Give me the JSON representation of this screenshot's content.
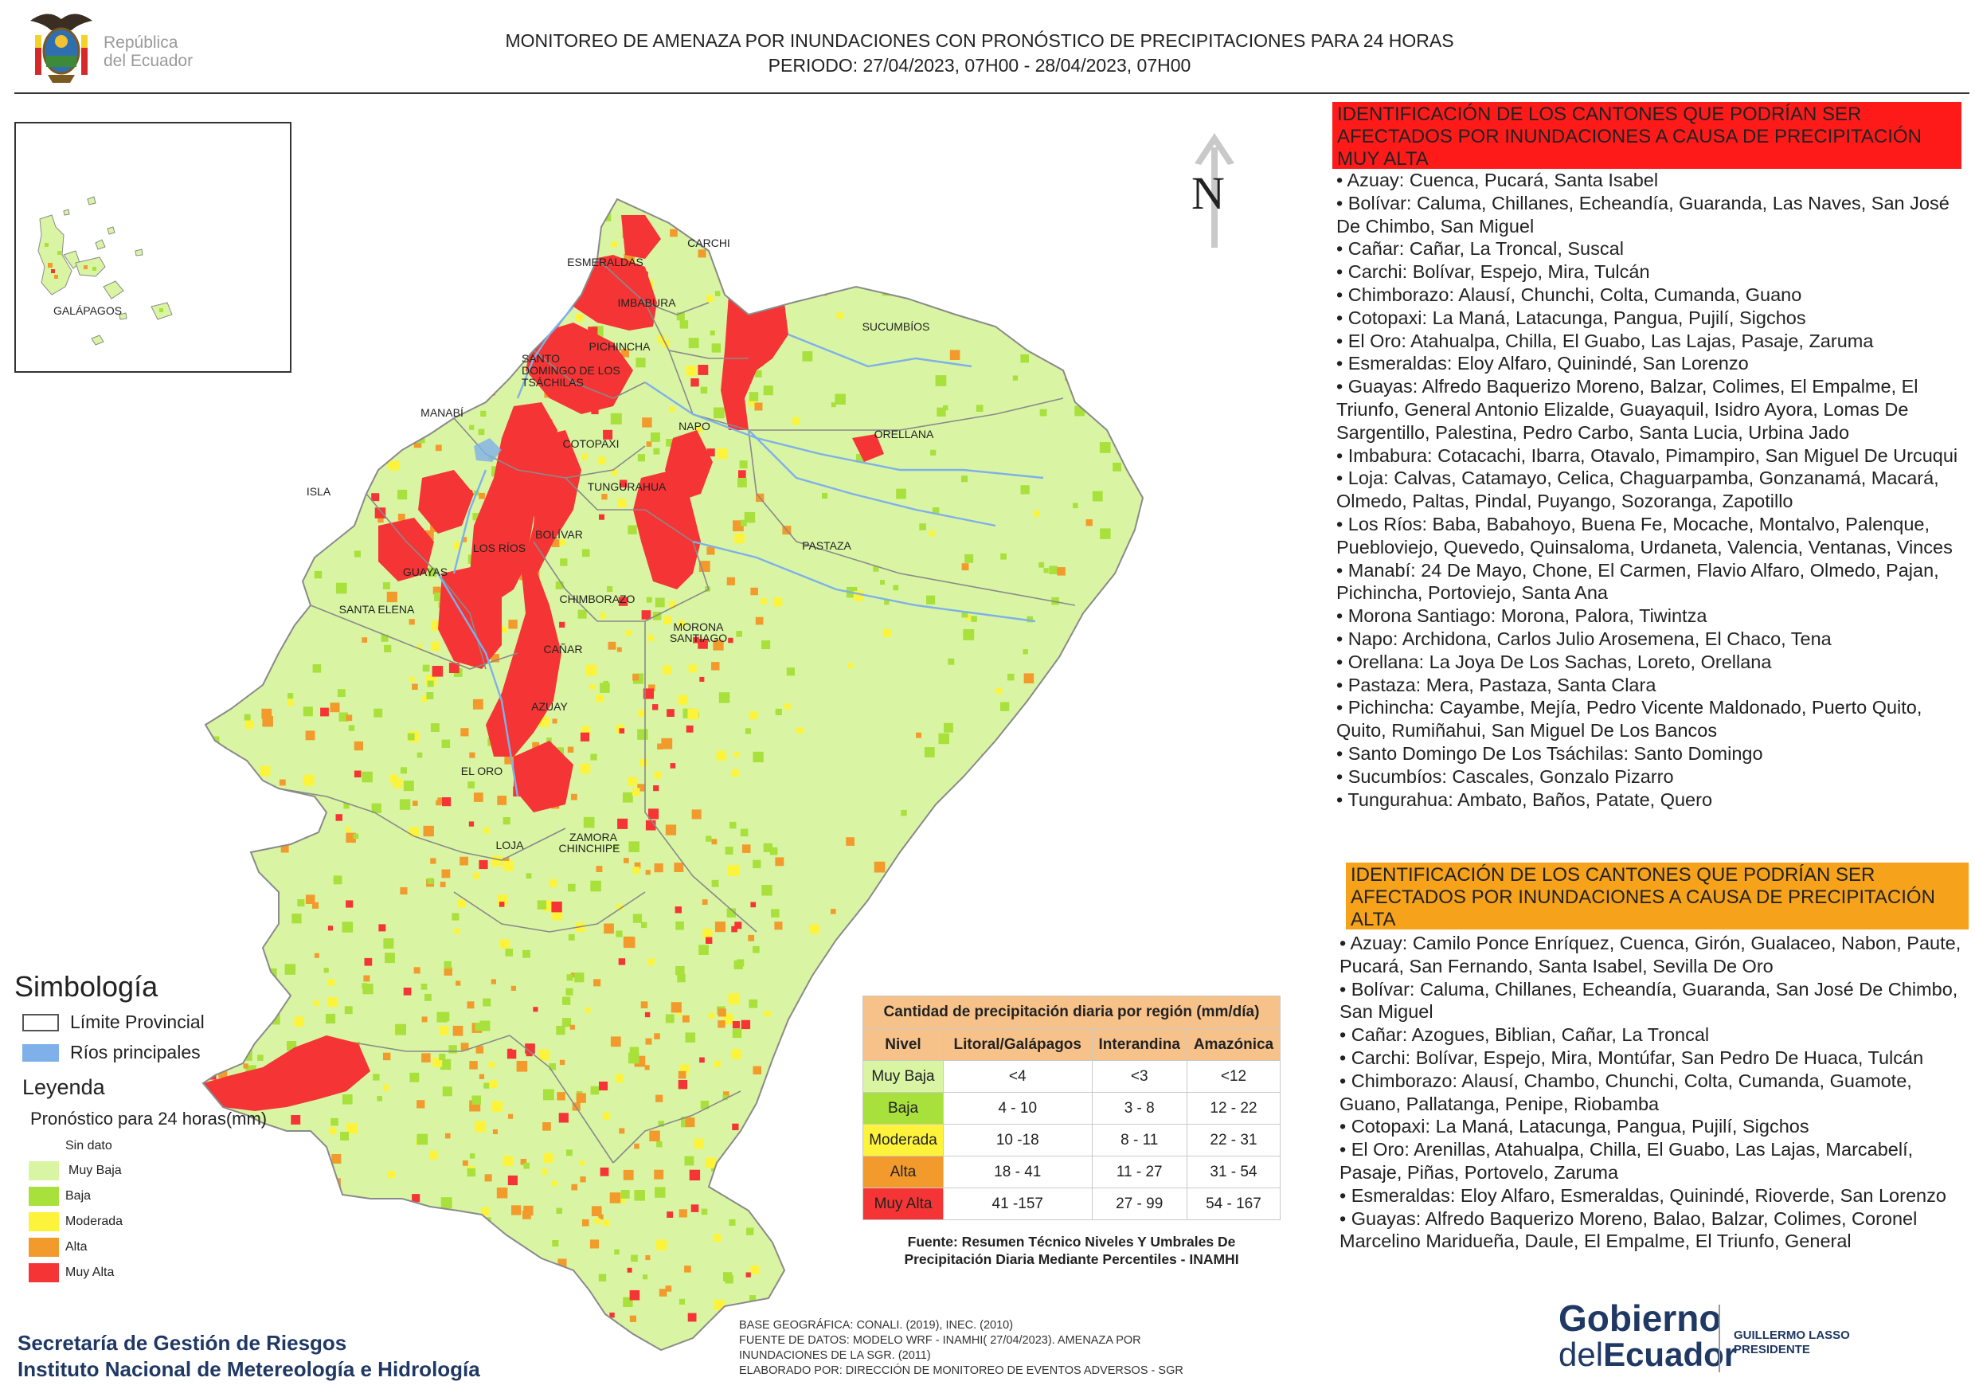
{
  "header": {
    "logo_text_line1": "República",
    "logo_text_line2": "del Ecuador",
    "title_line1": "MONITOREO DE AMENAZA POR INUNDACIONES  CON PRONÓSTICO DE  PRECIPITACIONES PARA 24 HORAS",
    "title_line2": "PERIODO: 27/04/2023, 07H00 - 28/04/2023, 07H00"
  },
  "map": {
    "north_label": "N",
    "inset_label": "GALÁPAGOS",
    "province_labels": [
      "CARCHI",
      "ESMERALDAS",
      "IMBABURA",
      "SUCUMBÍOS",
      "PICHINCHA",
      "SANTO",
      "DOMINGO DE LOS",
      "TSÁCHILAS",
      "MANABÍ",
      "NAPO",
      "ORELLANA",
      "COTOPAXI",
      "ISLA",
      "TUNGURAHUA",
      "BOLÍVAR",
      "LOS RÍOS",
      "PASTAZA",
      "GUAYAS",
      "CHIMBORAZO",
      "SANTA ELENA",
      "MORONA",
      "SANTIAGO",
      "CAÑAR",
      "AZUAY",
      "EL ORO",
      "ZAMORA",
      "CHINCHIPE",
      "LOJA"
    ],
    "colors": {
      "muy_baja": "#d9f5a3",
      "baja": "#a8e03c",
      "moderada": "#fdf33a",
      "alta": "#f39a2c",
      "muy_alta": "#f53535",
      "rivers": "#7fb0ea",
      "boundary": "#8a8a8a"
    }
  },
  "simbologia": {
    "title": "Simbología",
    "limite": "Límite Provincial",
    "rios": "Ríos principales",
    "leyenda": "Leyenda",
    "pronostico": "Pronóstico para 24 horas(mm)",
    "items": [
      "Sin dato",
      "Muy Baja",
      "Baja",
      "Moderada",
      "Alta",
      "Muy Alta"
    ]
  },
  "precip_table": {
    "caption": "Cantidad de precipitación diaria por región (mm/día)",
    "headers": [
      "Nivel",
      "Litoral/Galápagos",
      "Interandina",
      "Amazónica"
    ],
    "rows": [
      {
        "nivel": "Muy Baja",
        "litoral": "<4",
        "interandina": "<3",
        "amazonica": "<12",
        "color": "#d9f5a3"
      },
      {
        "nivel": "Baja",
        "litoral": "4 - 10",
        "interandina": "3 - 8",
        "amazonica": "12 - 22",
        "color": "#a8e03c"
      },
      {
        "nivel": "Moderada",
        "litoral": "10 -18",
        "interandina": "8 - 11",
        "amazonica": "22 - 31",
        "color": "#fdf33a"
      },
      {
        "nivel": "Alta",
        "litoral": "18 - 41",
        "interandina": "11 - 27",
        "amazonica": "31 - 54",
        "color": "#f39a2c"
      },
      {
        "nivel": "Muy Alta",
        "litoral": "41 -157",
        "interandina": "27 - 99",
        "amazonica": "54 - 167",
        "color": "#f53535"
      }
    ],
    "source_line1": "Fuente: Resumen Técnico Niveles Y Umbrales De",
    "source_line2": "Precipitación Diaria Mediante Percentiles - INAMHI"
  },
  "muy_alta": {
    "heading": "IDENTIFICACIÓN DE LOS CANTONES QUE PODRÍAN SER AFECTADOS POR INUNDACIONES  A CAUSA DE PRECIPITACIÓN MUY ALTA",
    "items": [
      "• Azuay: Cuenca, Pucará, Santa Isabel",
      "• Bolívar: Caluma, Chillanes, Echeandía, Guaranda, Las Naves, San José De Chimbo, San Miguel",
      "• Cañar: Cañar, La Troncal, Suscal",
      "• Carchi: Bolívar, Espejo, Mira, Tulcán",
      "• Chimborazo: Alausí, Chunchi, Colta, Cumanda, Guano",
      "• Cotopaxi: La Maná, Latacunga, Pangua, Pujilí, Sigchos",
      "• El Oro: Atahualpa, Chilla, El Guabo, Las Lajas, Pasaje, Zaruma",
      "• Esmeraldas: Eloy Alfaro, Quinindé, San Lorenzo",
      "• Guayas: Alfredo Baquerizo Moreno, Balzar, Colimes, El Empalme, El Triunfo, General Antonio Elizalde, Guayaquil, Isidro Ayora, Lomas De Sargentillo, Palestina, Pedro Carbo, Santa Lucia, Urbina Jado",
      "• Imbabura: Cotacachi, Ibarra, Otavalo, Pimampiro, San Miguel De Urcuqui",
      "• Loja: Calvas, Catamayo, Celica, Chaguarpamba, Gonzanamá, Macará, Olmedo, Paltas, Pindal, Puyango, Sozoranga, Zapotillo",
      "• Los Ríos: Baba, Babahoyo, Buena Fe, Mocache, Montalvo, Palenque, Puebloviejo, Quevedo, Quinsaloma, Urdaneta, Valencia, Ventanas, Vinces",
      "• Manabí: 24 De Mayo, Chone, El Carmen, Flavio Alfaro, Olmedo, Pajan, Pichincha, Portoviejo, Santa Ana",
      "• Morona Santiago: Morona, Palora, Tiwintza",
      "• Napo: Archidona, Carlos Julio Arosemena, El Chaco, Tena",
      "• Orellana: La Joya De Los Sachas, Loreto, Orellana",
      "• Pastaza: Mera, Pastaza, Santa Clara",
      "• Pichincha: Cayambe, Mejía, Pedro Vicente Maldonado, Puerto Quito, Quito, Rumiñahui, San Miguel De Los Bancos",
      "• Santo Domingo De Los Tsáchilas: Santo Domingo",
      "• Sucumbíos: Cascales, Gonzalo Pizarro",
      "• Tungurahua: Ambato, Baños, Patate, Quero"
    ]
  },
  "alta": {
    "heading": "IDENTIFICACIÓN DE LOS CANTONES QUE  PODRÍAN SER AFECTADOS POR INUNDACIONES  A CAUSA DE PRECIPITACIÓN ALTA",
    "items": [
      "• Azuay: Camilo Ponce Enríquez, Cuenca, Girón, Gualaceo, Nabon, Paute, Pucará, San Fernando, Santa Isabel, Sevilla De Oro",
      "• Bolívar: Caluma, Chillanes, Echeandía, Guaranda, San José De Chimbo, San Miguel",
      "• Cañar: Azogues, Biblian, Cañar, La Troncal",
      "• Carchi: Bolívar, Espejo, Mira, Montúfar, San Pedro De Huaca, Tulcán",
      "• Chimborazo: Alausí, Chambo, Chunchi, Colta, Cumanda, Guamote, Guano, Pallatanga, Penipe, Riobamba",
      "• Cotopaxi: La Maná, Latacunga, Pangua, Pujilí, Sigchos",
      "• El Oro: Arenillas, Atahualpa, Chilla, El Guabo, Las Lajas, Marcabelí, Pasaje, Piñas, Portovelo, Zaruma",
      "• Esmeraldas: Eloy Alfaro, Esmeraldas, Quinindé, Rioverde, San Lorenzo",
      "• Guayas: Alfredo Baquerizo Moreno, Balao, Balzar, Colimes, Coronel Marcelino Maridueña, Daule, El Empalme, El Triunfo, General"
    ]
  },
  "footer": {
    "agency_line1": "Secretaría de Gestión de Riesgos",
    "agency_line2": "Instituto Nacional de Metereología e Hidrología",
    "credits_line1": "BASE GEOGRÁFICA: CONALI. (2019), INEC. (2010)",
    "credits_line2": "FUENTE DE DATOS: MODELO WRF - INAMHI( 27/04/2023).  AMENAZA POR",
    "credits_line3": "INUNDACIONES DE LA SGR. (2011)",
    "credits_line4": "ELABORADO POR: DIRECCIÓN DE MONITOREO DE EVENTOS ADVERSOS - SGR",
    "gov_line1": "Gobierno",
    "gov_line2a": "del",
    "gov_line2b": "Ecuador",
    "pres_line1": "GUILLERMO LASSO",
    "pres_line2": "PRESIDENTE"
  }
}
